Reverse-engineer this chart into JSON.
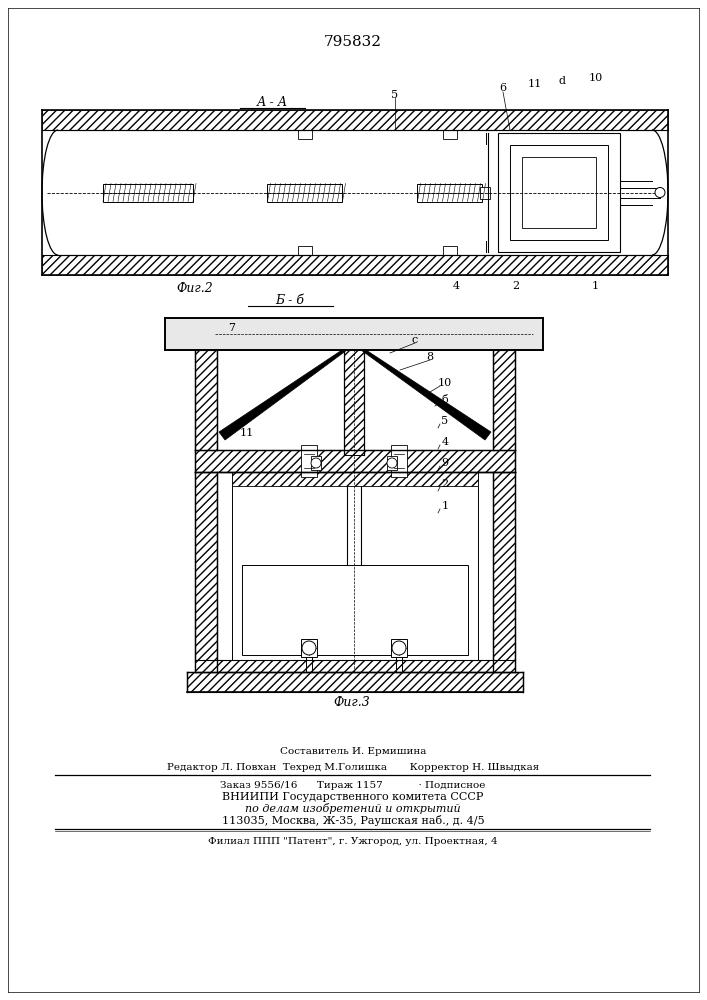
{
  "patent_number": "795832",
  "fig2_label": "А - А",
  "fig2_caption": "Фиг.2",
  "fig3_label": "Б - б",
  "fig3_caption": "Фиг.3",
  "footer_lines": [
    "Составитель И. Ермишина",
    "Редактор Л. Повхан  Техред М.Голишка       Корректор Н. Швыдкая",
    "Заказ 9556/16      Тираж 1157           · Подписное",
    "ВНИИПИ Государственного комитета СССР",
    "по делам изобретений и открытий",
    "113035, Москва, Ж-35, Раушская наб., д. 4/5",
    "Филиал ППП \"Патент\", г. Ужгород, ул. Проектная, 4"
  ],
  "bg_color": "#ffffff",
  "lc": "#000000"
}
